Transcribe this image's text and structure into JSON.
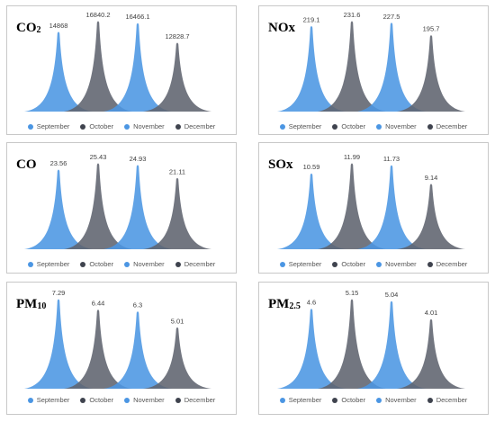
{
  "series_labels": [
    "September",
    "October",
    "November",
    "December"
  ],
  "colors": {
    "blue": "#4b96e3",
    "gray": "#5f636e",
    "dark": "#3f434e",
    "border": "#c8c8c8"
  },
  "chart_data": [
    {
      "type": "area",
      "title": "CO",
      "subscript": "2",
      "categories": [
        "September",
        "October",
        "November",
        "December"
      ],
      "values": [
        14868,
        16840.2,
        16466.1,
        12828.7
      ],
      "labels": [
        "14868",
        "16840.2",
        "16466.1",
        "12828.7"
      ]
    },
    {
      "type": "area",
      "title": "NOx",
      "subscript": "",
      "categories": [
        "September",
        "October",
        "November",
        "December"
      ],
      "values": [
        219.1,
        231.6,
        227.5,
        195.7
      ],
      "labels": [
        "219.1",
        "231.6",
        "227.5",
        "195.7"
      ]
    },
    {
      "type": "area",
      "title": "CO",
      "subscript": "",
      "categories": [
        "September",
        "October",
        "November",
        "December"
      ],
      "values": [
        23.56,
        25.43,
        24.93,
        21.11
      ],
      "labels": [
        "23.56",
        "25.43",
        "24.93",
        "21.11"
      ]
    },
    {
      "type": "area",
      "title": "SOx",
      "subscript": "",
      "categories": [
        "September",
        "October",
        "November",
        "December"
      ],
      "values": [
        10.59,
        11.99,
        11.73,
        9.14
      ],
      "labels": [
        "10.59",
        "11.99",
        "11.73",
        "9.14"
      ]
    },
    {
      "type": "area",
      "title": "PM",
      "subscript": "10",
      "categories": [
        "September",
        "October",
        "November",
        "December"
      ],
      "values": [
        7.29,
        6.44,
        6.3,
        5.01
      ],
      "labels": [
        "7.29",
        "6.44",
        "6.3",
        "5.01"
      ]
    },
    {
      "type": "area",
      "title": "PM",
      "subscript": "2.5",
      "categories": [
        "September",
        "October",
        "November",
        "December"
      ],
      "values": [
        4.6,
        5.15,
        5.04,
        4.01
      ],
      "labels": [
        "4.6",
        "5.15",
        "5.04",
        "4.01"
      ]
    }
  ]
}
